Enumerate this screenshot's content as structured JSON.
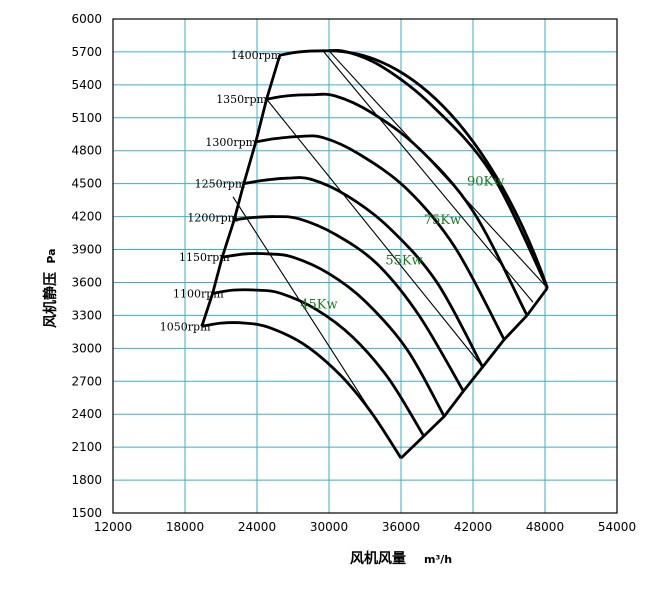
{
  "chart_data": {
    "type": "line",
    "xlabel": "风机风量",
    "xlabel_unit": "m³/h",
    "ylabel": "风机静压",
    "ylabel_unit": "Pa",
    "xlim": [
      12000,
      54000
    ],
    "ylim": [
      1500,
      6000
    ],
    "x_ticks": [
      "12000",
      "18000",
      "24000",
      "30000",
      "36000",
      "42000",
      "48000",
      "54000"
    ],
    "y_ticks": [
      "1500",
      "1800",
      "2100",
      "2400",
      "2700",
      "3000",
      "3300",
      "3600",
      "3900",
      "4200",
      "4500",
      "4800",
      "5100",
      "5400",
      "5700",
      "6000"
    ],
    "grid": true,
    "series": [
      {
        "name": "1050rpm",
        "x": [
          19400,
          21000,
          23000,
          25000,
          28000,
          31000,
          33500,
          36000
        ],
        "y": [
          3200,
          3230,
          3230,
          3190,
          3030,
          2750,
          2420,
          2000
        ]
      },
      {
        "name": "1100rpm",
        "x": [
          20300,
          22000,
          24000,
          26000,
          29000,
          32000,
          35000,
          37900
        ],
        "y": [
          3500,
          3530,
          3530,
          3500,
          3350,
          3100,
          2720,
          2200
        ]
      },
      {
        "name": "1150rpm",
        "x": [
          21100,
          23000,
          25000,
          27000,
          30000,
          33000,
          36500,
          39600
        ],
        "y": [
          3830,
          3860,
          3860,
          3830,
          3680,
          3430,
          2990,
          2380
        ]
      },
      {
        "name": "1200rpm",
        "x": [
          22100,
          23500,
          25500,
          27500,
          30500,
          34000,
          37500,
          41200
        ],
        "y": [
          4170,
          4190,
          4200,
          4180,
          4040,
          3770,
          3300,
          2610
        ]
      },
      {
        "name": "1250rpm",
        "x": [
          22900,
          24500,
          26500,
          28500,
          31500,
          35000,
          39000,
          42800
        ],
        "y": [
          4500,
          4530,
          4550,
          4540,
          4390,
          4100,
          3600,
          2830
        ]
      },
      {
        "name": "1300rpm",
        "x": [
          23900,
          25500,
          27500,
          29500,
          32500,
          36500,
          40500,
          44600
        ],
        "y": [
          4880,
          4910,
          4930,
          4920,
          4770,
          4450,
          3920,
          3080
        ]
      },
      {
        "name": "1350rpm",
        "x": [
          24800,
          26500,
          28500,
          30500,
          33500,
          37500,
          42000,
          46500
        ],
        "y": [
          5270,
          5300,
          5310,
          5300,
          5150,
          4820,
          4250,
          3300
        ]
      },
      {
        "name": "1400rpm",
        "x": [
          25900,
          27500,
          29500,
          31500,
          34500,
          38500,
          43500,
          48200
        ],
        "y": [
          5670,
          5700,
          5710,
          5700,
          5560,
          5220,
          4600,
          3550
        ]
      }
    ],
    "envelope": {
      "x": [
        19400,
        20300,
        21100,
        22100,
        22900,
        23900,
        24800,
        25900,
        30000,
        48200,
        46500,
        44600,
        42800,
        41200,
        39600,
        37900,
        36000
      ],
      "y": [
        3200,
        3500,
        3830,
        4170,
        4500,
        4880,
        5270,
        5670,
        5710,
        3550,
        3300,
        3080,
        2830,
        2610,
        2380,
        2200,
        2000
      ]
    },
    "power_lines": [
      {
        "label": "45Kw",
        "x": [
          22000,
          36000
        ],
        "y": [
          4380,
          2000
        ]
      },
      {
        "label": "55Kw",
        "x": [
          24800,
          42800
        ],
        "y": [
          5270,
          2830
        ]
      },
      {
        "label": "75Kw",
        "x": [
          29500,
          47000
        ],
        "y": [
          5710,
          3420
        ]
      },
      {
        "label": "90Kw",
        "x": [
          30000,
          48200
        ],
        "y": [
          5710,
          3550
        ]
      }
    ],
    "power_labels": [
      {
        "text": "45Kw",
        "x": 27600,
        "y": 3400
      },
      {
        "text": "55Kw",
        "x": 34700,
        "y": 3800
      },
      {
        "text": "75Kw",
        "x": 37900,
        "y": 4170
      },
      {
        "text": "90Kw",
        "x": 41500,
        "y": 4520
      }
    ],
    "rpm_labels": [
      {
        "text": "1050rpm",
        "x": 15900,
        "y": 3200
      },
      {
        "text": "1100rpm",
        "x": 17000,
        "y": 3500
      },
      {
        "text": "1150rpm",
        "x": 17500,
        "y": 3830
      },
      {
        "text": "1200rpm",
        "x": 18200,
        "y": 4190
      },
      {
        "text": "1250rpm",
        "x": 18800,
        "y": 4500
      },
      {
        "text": "1300rpm",
        "x": 19700,
        "y": 4880
      },
      {
        "text": "1350rpm",
        "x": 20600,
        "y": 5270
      },
      {
        "text": "1400rpm",
        "x": 21800,
        "y": 5670
      }
    ],
    "colors": {
      "grid": "#3ab0c8",
      "curve": "#000000",
      "kw_label": "#1a7a1a"
    }
  }
}
